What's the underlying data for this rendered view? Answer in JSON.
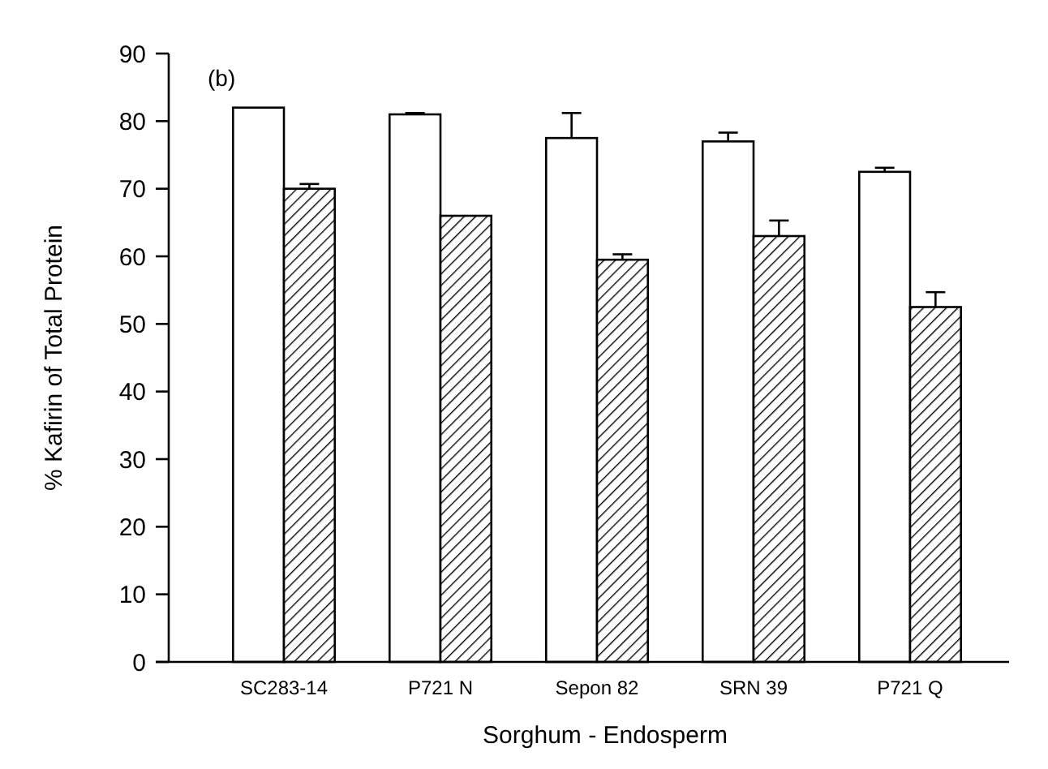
{
  "chart_data": {
    "type": "bar",
    "xlabel": "Sorghum - Endosperm",
    "ylabel": "% Kafirin of Total Protein",
    "annotations": [
      "(b)"
    ],
    "categories": [
      "SC283-14",
      "P721 N",
      "Sepon 82",
      "SRN 39",
      "P721 Q"
    ],
    "series": [
      {
        "color": "#ffffff",
        "values": [
          82,
          81,
          77.5,
          77,
          72.5
        ],
        "errors": [
          null,
          0.2,
          3.7,
          1.3,
          0.6
        ]
      },
      {
        "color": "#000000",
        "values": [
          70,
          66,
          59.5,
          63,
          52.5
        ],
        "errors": [
          0.7,
          null,
          0.8,
          2.3,
          2.2
        ]
      }
    ],
    "ylim": [
      0,
      90
    ],
    "yticks": [
      0,
      10,
      20,
      30,
      40,
      50,
      60,
      70,
      80,
      90
    ],
    "grid": false
  }
}
